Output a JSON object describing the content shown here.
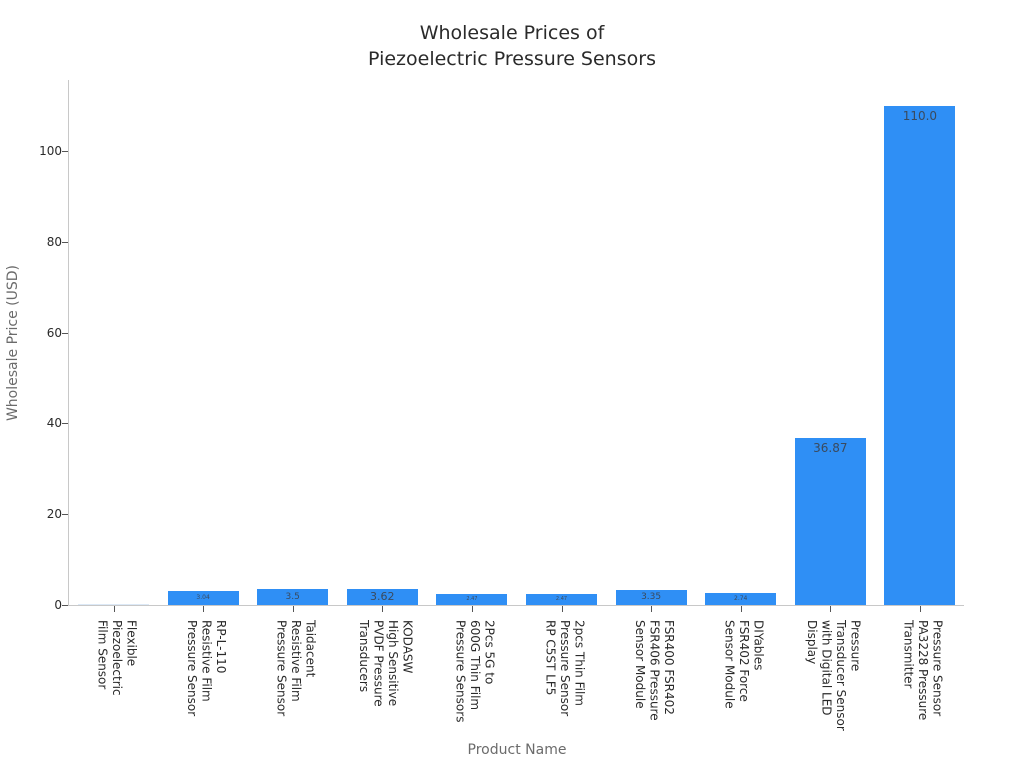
{
  "chart_data": {
    "type": "bar",
    "title": "Wholesale Prices of\nPiezoelectric Pressure Sensors",
    "title_lines": [
      "Wholesale Prices of",
      "Piezoelectric Pressure Sensors"
    ],
    "xlabel": "Product Name",
    "ylabel": "Wholesale Price (USD)",
    "ylim": [
      0,
      115
    ],
    "yticks": [
      0,
      20,
      40,
      60,
      80,
      100
    ],
    "grid": false,
    "legend": null,
    "bar_color": "#2f8ff5",
    "categories": [
      "Flexible Piezoelectric Film Sensor",
      "RP-L-110 Resistive Film Pressure Sensor",
      "Taidacent Resistive Film Pressure Sensor",
      "KODASW High Sensitive PVDF Pressure Transducers",
      "2Pcs 5G to 600G Thin Film Pressure Sensors",
      "2pcs Thin Film Pressure Sensor RP C5ST LF5",
      "FSR400 FSR402 FSR406 Pressure Sensor Module",
      "DIYables FSR402 Force Sensor Module",
      "Pressure Transducer Sensor with Digital LED Display",
      "Pressure Sensor PA3228 Pressure Transmitter"
    ],
    "category_lines": [
      [
        "Flexible",
        "Piezoelectric",
        "Film Sensor"
      ],
      [
        "RP-L-110",
        "Resistive Film",
        "Pressure Sensor"
      ],
      [
        "Taidacent",
        "Resistive Film",
        "Pressure Sensor"
      ],
      [
        "KODASW",
        "High Sensitive",
        "PVDF Pressure",
        "Transducers"
      ],
      [
        "2Pcs 5G to",
        "600G Thin Film",
        "Pressure Sensors"
      ],
      [
        "2pcs Thin Film",
        "Pressure Sensor",
        "RP C5ST LF5"
      ],
      [
        "FSR400 FSR402",
        "FSR406 Pressure",
        "Sensor Module"
      ],
      [
        "DIYables",
        "FSR402 Force",
        "Sensor Module"
      ],
      [
        "Pressure",
        "Transducer Sensor",
        "with Digital LED",
        "Display"
      ],
      [
        "Pressure Sensor",
        "PA3228 Pressure",
        "Transmitter"
      ]
    ],
    "values": [
      0.2,
      3.04,
      3.5,
      3.62,
      2.47,
      2.47,
      3.35,
      2.74,
      36.87,
      110.0
    ],
    "value_labels": [
      "",
      "3.04",
      "3.5",
      "3.62",
      "2.47",
      "2.47",
      "3.35",
      "2.74",
      "36.87",
      "110.0"
    ]
  }
}
